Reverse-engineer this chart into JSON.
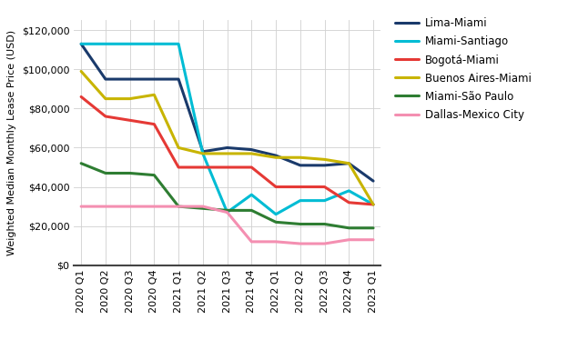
{
  "title": "Weighted Median Monthly Lease Price (USD)",
  "ylabel": "Weighted Median Monthly Lease Price (USD)",
  "quarters": [
    "2020 Q1",
    "2020 Q2",
    "2020 Q3",
    "2020 Q4",
    "2021 Q1",
    "2021 Q2",
    "2021 Q3",
    "2021 Q4",
    "2022 Q1",
    "2022 Q2",
    "2022 Q3",
    "2022 Q4",
    "2023 Q1"
  ],
  "series": [
    {
      "label": "Lima-Miami",
      "color": "#1a3a6b",
      "linewidth": 2.2,
      "values": [
        113000,
        95000,
        95000,
        95000,
        95000,
        58000,
        60000,
        59000,
        56000,
        51000,
        51000,
        52000,
        43000
      ]
    },
    {
      "label": "Miami-Santiago",
      "color": "#00bcd4",
      "linewidth": 2.2,
      "values": [
        113000,
        113000,
        113000,
        113000,
        113000,
        57000,
        27000,
        36000,
        26000,
        33000,
        33000,
        38000,
        31000
      ]
    },
    {
      "label": "Bogotá-Miami",
      "color": "#e53935",
      "linewidth": 2.2,
      "values": [
        86000,
        76000,
        74000,
        72000,
        50000,
        50000,
        50000,
        50000,
        40000,
        40000,
        40000,
        32000,
        31000
      ]
    },
    {
      "label": "Buenos Aires-Miami",
      "color": "#c8b400",
      "linewidth": 2.2,
      "values": [
        99000,
        85000,
        85000,
        87000,
        60000,
        57000,
        57000,
        57000,
        55000,
        55000,
        54000,
        52000,
        31000
      ]
    },
    {
      "label": "Miami-São Paulo",
      "color": "#2e7d32",
      "linewidth": 2.2,
      "values": [
        52000,
        47000,
        47000,
        46000,
        30000,
        29000,
        28000,
        28000,
        22000,
        21000,
        21000,
        19000,
        19000
      ]
    },
    {
      "label": "Dallas-Mexico City",
      "color": "#f48fb1",
      "linewidth": 2.2,
      "values": [
        30000,
        30000,
        30000,
        30000,
        30000,
        30000,
        27000,
        12000,
        12000,
        11000,
        11000,
        13000,
        13000
      ]
    }
  ],
  "ylim": [
    0,
    125000
  ],
  "yticks": [
    0,
    20000,
    40000,
    60000,
    80000,
    100000,
    120000
  ],
  "background_color": "#ffffff",
  "grid_color": "#d0d0d0"
}
